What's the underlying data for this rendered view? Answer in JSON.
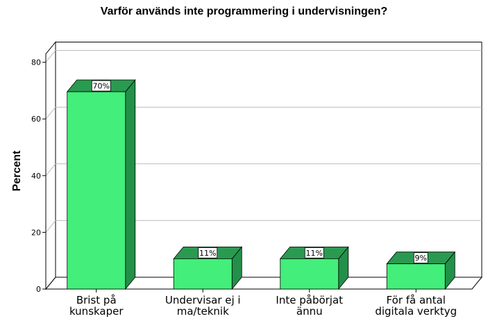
{
  "chart_data": {
    "type": "bar",
    "title": "Varför används inte programmering i undervisningen?",
    "xlabel": "",
    "ylabel": "Percent",
    "ylim": [
      0,
      80
    ],
    "yticks": [
      0,
      20,
      40,
      60,
      80
    ],
    "grid": true,
    "three_d": true,
    "categories": [
      [
        "Brist på",
        "kunskaper"
      ],
      [
        "Undervisar ej i",
        "ma/teknik"
      ],
      [
        "Inte påbörjat",
        "ännu"
      ],
      [
        "För få antal",
        "digitala verktyg"
      ]
    ],
    "values": [
      69.6,
      10.7,
      10.7,
      8.9
    ],
    "data_labels": [
      "70%",
      "11%",
      "11%",
      "9%"
    ],
    "colors": {
      "bar_front": "#43EE7A",
      "bar_side": "#229049",
      "bar_top": "#2A9A51",
      "grid": "#bbbbbb",
      "axis": "#000000"
    }
  }
}
